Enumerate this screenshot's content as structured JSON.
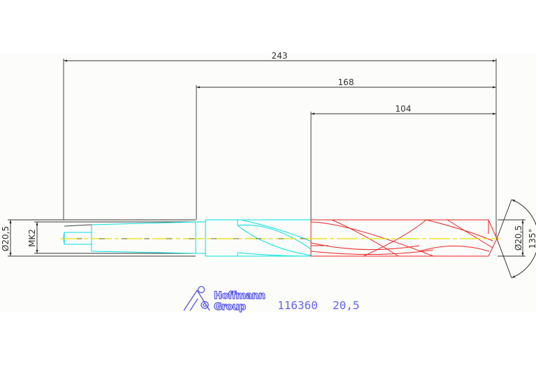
{
  "dimensions": {
    "overall_length": "243",
    "shank_to_tip": "168",
    "flute_length": "104",
    "left_diameter": "Ø20,5",
    "taper": "MK2",
    "right_diameter": "Ø20,5",
    "point_angle": "135°"
  },
  "logo": {
    "line1": "Hoffmann",
    "line2": "Group"
  },
  "product": {
    "article_number": "116360",
    "size": "20,5"
  },
  "colors": {
    "shank": "#00e5e5",
    "flutes": "#ee2222",
    "centerline": "#e8e000",
    "dimension": "#333333",
    "brand": "#5555ee"
  }
}
